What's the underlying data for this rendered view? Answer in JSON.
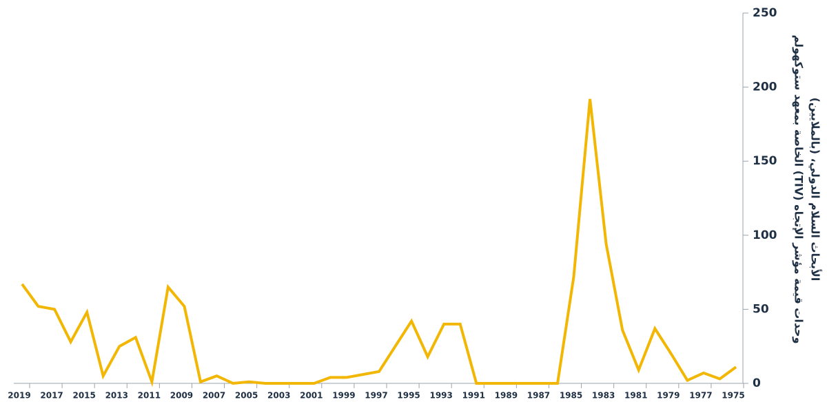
{
  "chart_data": {
    "type": "line",
    "categories": [
      "2019",
      null,
      "2017",
      null,
      "2015",
      null,
      "2013",
      null,
      "2011",
      null,
      "2009",
      null,
      "2007",
      null,
      "2005",
      null,
      "2003",
      null,
      "2001",
      null,
      "1999",
      null,
      "1997",
      null,
      "1995",
      null,
      "1993",
      null,
      "1991",
      null,
      "1989",
      null,
      "1987",
      null,
      "1985",
      null,
      "1983",
      null,
      "1981",
      null,
      "1979",
      null,
      "1977",
      null,
      "1975"
    ],
    "series": [
      {
        "color": "#f2b705",
        "values": [
          67,
          52,
          50,
          28,
          48,
          5,
          25,
          31,
          1,
          65,
          52,
          1,
          5,
          0,
          1,
          0,
          0,
          0,
          0,
          4,
          4,
          6,
          8,
          25,
          42,
          18,
          40,
          40,
          0,
          0,
          0,
          0,
          0,
          0,
          72,
          192,
          94,
          36,
          9,
          37,
          20,
          2,
          7,
          3,
          11
        ]
      }
    ],
    "ylim": [
      0,
      250
    ],
    "yticks": [
      0,
      50,
      100,
      150,
      200,
      250
    ],
    "ylabel": [
      "وحدات قيمة مؤشر الإتجاه (TIV) الخاصة بمعهد ستوكهولم",
      "الأبحاث السلام الدولي، (بالملايين)"
    ]
  }
}
